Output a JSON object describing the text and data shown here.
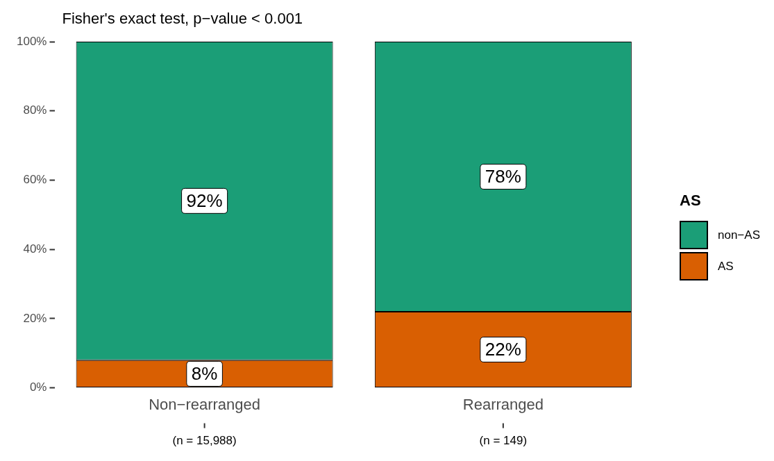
{
  "chart_data": {
    "type": "bar",
    "stacked": true,
    "title": "Fisher's exact test, p−value < 0.001",
    "legend_title": "AS",
    "legend": "right",
    "grid": false,
    "categories": [
      "Non−rearranged",
      "Rearranged"
    ],
    "series": [
      {
        "name": "AS",
        "color": "#d95f02",
        "values": [
          8,
          22
        ],
        "value_labels": [
          "8%",
          "22%"
        ]
      },
      {
        "name": "non−AS",
        "color": "#1b9e77",
        "values": [
          92,
          78
        ],
        "value_labels": [
          "92%",
          "78%"
        ]
      }
    ],
    "ylim": [
      0,
      100
    ],
    "yticks": [
      {
        "value": 0,
        "label": "0%"
      },
      {
        "value": 20,
        "label": "20%"
      },
      {
        "value": 40,
        "label": "40%"
      },
      {
        "value": 60,
        "label": "60%"
      },
      {
        "value": 80,
        "label": "80%"
      },
      {
        "value": 100,
        "label": "100%"
      }
    ],
    "annotations": [
      "(n = 15,988)",
      "(n = 149)"
    ]
  }
}
